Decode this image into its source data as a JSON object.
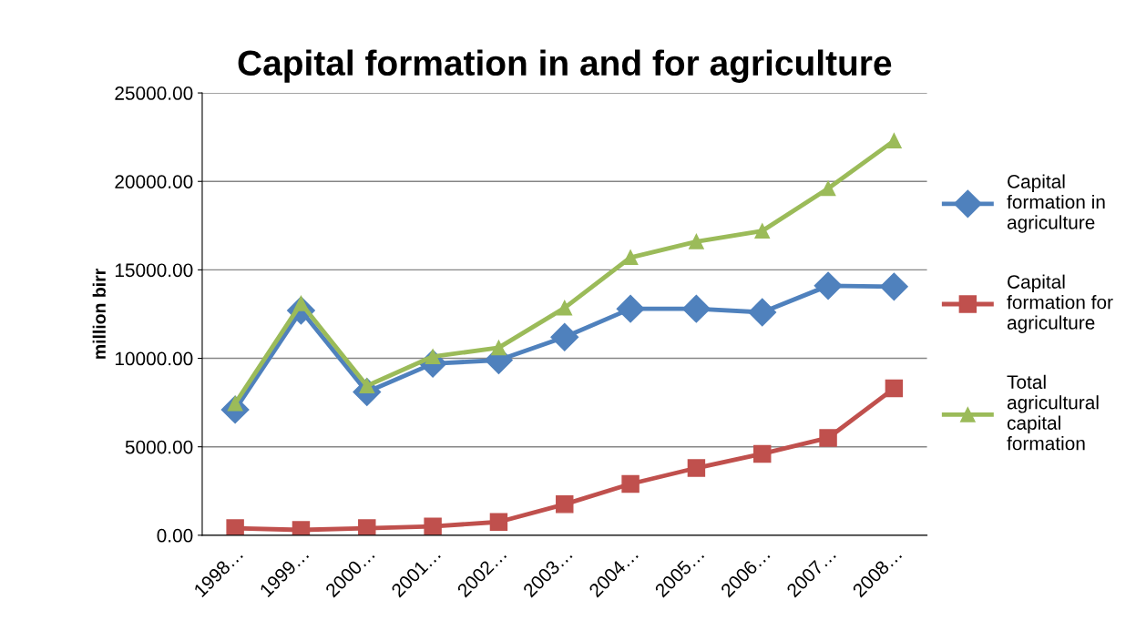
{
  "chart_data": {
    "type": "line",
    "title": "Capital formation in and for agriculture",
    "ylabel": "million birr",
    "categories": [
      "1998…",
      "1999…",
      "2000…",
      "2001…",
      "2002…",
      "2003…",
      "2004…",
      "2005…",
      "2006…",
      "2007…",
      "2008…"
    ],
    "series": [
      {
        "name": "Capital formation in agriculture",
        "color": "#4f81bd",
        "marker": "diamond",
        "values": [
          7100,
          12700,
          8100,
          9700,
          9900,
          11200,
          12800,
          12800,
          12600,
          14100,
          14050
        ]
      },
      {
        "name": "Capital formation for agriculture",
        "color": "#c0504d",
        "marker": "square",
        "values": [
          400,
          300,
          400,
          500,
          750,
          1750,
          2900,
          3800,
          4600,
          5500,
          8300
        ]
      },
      {
        "name": "Total agricultural capital formation",
        "color": "#9bbb59",
        "marker": "triangle",
        "values": [
          7450,
          13100,
          8450,
          10100,
          10600,
          12850,
          15700,
          16600,
          17200,
          19600,
          22300
        ]
      }
    ],
    "ylim": [
      0,
      25000
    ],
    "yticks": [
      {
        "value": 0,
        "label": "0.00"
      },
      {
        "value": 5000,
        "label": "5000.00"
      },
      {
        "value": 10000,
        "label": "10000.00"
      },
      {
        "value": 15000,
        "label": "15000.00"
      },
      {
        "value": 20000,
        "label": "20000.00"
      },
      {
        "value": 25000,
        "label": "25000.00"
      }
    ],
    "grid": "y",
    "legend": "right"
  }
}
